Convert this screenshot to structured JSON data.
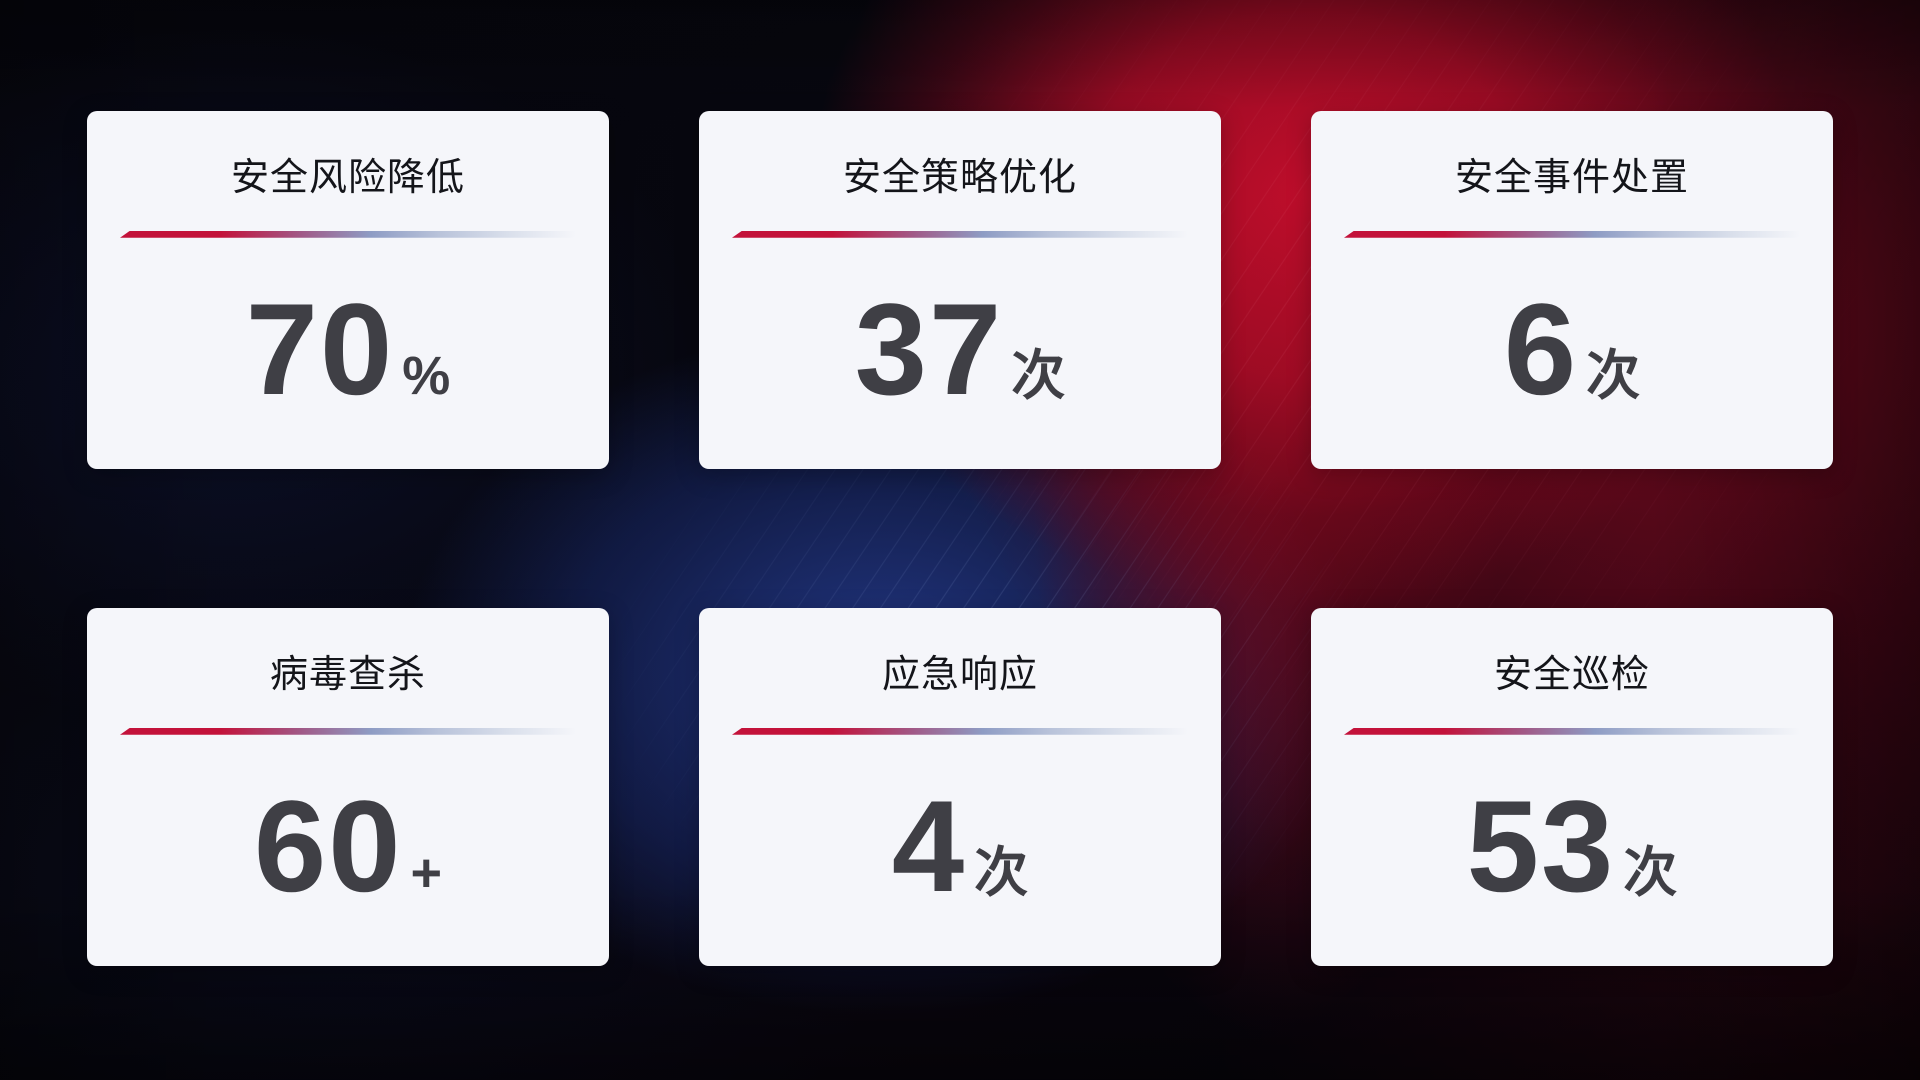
{
  "cards": [
    {
      "title": "安全风险降低",
      "value": "70",
      "unit": "%"
    },
    {
      "title": "安全策略优化",
      "value": "37",
      "unit": "次"
    },
    {
      "title": "安全事件处置",
      "value": "6",
      "unit": "次"
    },
    {
      "title": "病毒查杀",
      "value": "60",
      "unit": "+"
    },
    {
      "title": "应急响应",
      "value": "4",
      "unit": "次"
    },
    {
      "title": "安全巡检",
      "value": "53",
      "unit": "次"
    }
  ],
  "colors": {
    "accent_red": "#c3123a",
    "divider_fade_end": "#dfe4ef",
    "card_background": "#f5f6fa",
    "title_text": "#14151a",
    "value_text": "#3f3f45",
    "background_blue": "#1c2c6b",
    "background_red": "#b00e2c"
  }
}
